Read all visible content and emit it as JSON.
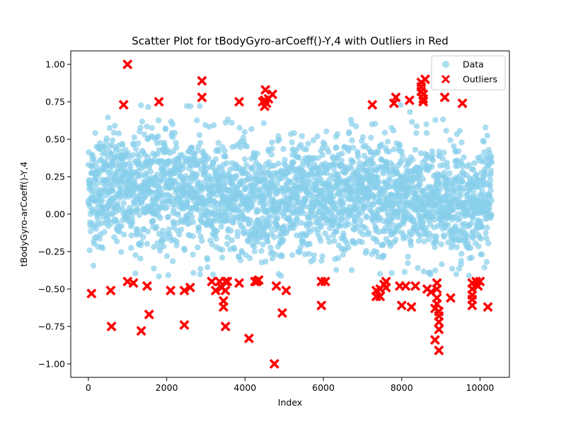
{
  "chart_data": {
    "type": "scatter",
    "title": "Scatter Plot for tBodyGyro-arCoeff()-Y,4 with Outliers in Red",
    "xlabel": "Index",
    "ylabel": "tBodyGyro-arCoeff()-Y,4",
    "xlim": [
      -450,
      10750
    ],
    "ylim": [
      -1.09,
      1.09
    ],
    "x_ticks": [
      0,
      2000,
      4000,
      6000,
      8000,
      10000
    ],
    "y_ticks": [
      -1.0,
      -0.75,
      -0.5,
      -0.25,
      0.0,
      0.25,
      0.5,
      0.75,
      1.0
    ],
    "x_tick_labels": [
      "0",
      "2000",
      "4000",
      "6000",
      "8000",
      "10000"
    ],
    "y_tick_labels": [
      "−1.00",
      "−0.75",
      "−0.50",
      "−0.25",
      "0.00",
      "0.25",
      "0.50",
      "0.75",
      "1.00"
    ],
    "legend_position": "top-right",
    "colors": {
      "data": "#87CEEB",
      "outliers": "#FF0000"
    },
    "series": [
      {
        "name": "Data",
        "marker": "circle",
        "n_points": 10299,
        "x_range": [
          0,
          10299
        ],
        "y_band": [
          -0.42,
          0.73
        ]
      },
      {
        "name": "Outliers",
        "marker": "x",
        "points": [
          [
            80,
            -0.53
          ],
          [
            570,
            -0.51
          ],
          [
            590,
            -0.75
          ],
          [
            900,
            0.73
          ],
          [
            1000,
            1.0
          ],
          [
            1000,
            -0.45
          ],
          [
            1150,
            -0.46
          ],
          [
            1350,
            -0.78
          ],
          [
            1500,
            -0.48
          ],
          [
            1550,
            -0.67
          ],
          [
            1800,
            0.75
          ],
          [
            2100,
            -0.51
          ],
          [
            2450,
            -0.74
          ],
          [
            2450,
            -0.51
          ],
          [
            2600,
            -0.49
          ],
          [
            2900,
            0.89
          ],
          [
            2900,
            0.78
          ],
          [
            3150,
            -0.45
          ],
          [
            3250,
            -0.51
          ],
          [
            3350,
            -0.45
          ],
          [
            3400,
            -0.49
          ],
          [
            3450,
            -0.58
          ],
          [
            3450,
            -0.62
          ],
          [
            3500,
            -0.45
          ],
          [
            3500,
            -0.51
          ],
          [
            3500,
            -0.75
          ],
          [
            3550,
            -0.45
          ],
          [
            3850,
            0.75
          ],
          [
            3850,
            -0.46
          ],
          [
            4100,
            -0.83
          ],
          [
            4250,
            -0.45
          ],
          [
            4300,
            -0.45
          ],
          [
            4350,
            -0.44
          ],
          [
            4450,
            0.75
          ],
          [
            4500,
            0.72
          ],
          [
            4500,
            0.76
          ],
          [
            4520,
            0.83
          ],
          [
            4550,
            0.74
          ],
          [
            4600,
            0.77
          ],
          [
            4700,
            0.8
          ],
          [
            4750,
            -1.0
          ],
          [
            4800,
            -0.48
          ],
          [
            4950,
            -0.66
          ],
          [
            5050,
            -0.51
          ],
          [
            5950,
            -0.61
          ],
          [
            5950,
            -0.45
          ],
          [
            6050,
            -0.45
          ],
          [
            7250,
            0.73
          ],
          [
            7350,
            -0.51
          ],
          [
            7350,
            -0.55
          ],
          [
            7450,
            -0.5
          ],
          [
            7450,
            -0.55
          ],
          [
            7550,
            -0.47
          ],
          [
            7600,
            -0.45
          ],
          [
            7600,
            -0.49
          ],
          [
            7800,
            0.74
          ],
          [
            7850,
            0.78
          ],
          [
            7950,
            -0.48
          ],
          [
            8000,
            -0.61
          ],
          [
            8100,
            -0.48
          ],
          [
            8200,
            0.76
          ],
          [
            8250,
            -0.62
          ],
          [
            8350,
            -0.48
          ],
          [
            8500,
            0.85
          ],
          [
            8500,
            0.88
          ],
          [
            8500,
            0.82
          ],
          [
            8550,
            0.8
          ],
          [
            8550,
            0.75
          ],
          [
            8550,
            0.77
          ],
          [
            8600,
            0.9
          ],
          [
            8650,
            -0.5
          ],
          [
            8750,
            -0.52
          ],
          [
            8850,
            -0.63
          ],
          [
            8850,
            -0.84
          ],
          [
            8900,
            -0.46
          ],
          [
            8900,
            -0.5
          ],
          [
            8900,
            -0.56
          ],
          [
            8900,
            -0.6
          ],
          [
            8950,
            -0.65
          ],
          [
            8950,
            -0.68
          ],
          [
            8950,
            -0.72
          ],
          [
            8950,
            -0.77
          ],
          [
            8950,
            -0.91
          ],
          [
            9100,
            0.78
          ],
          [
            9250,
            -0.56
          ],
          [
            9550,
            0.74
          ],
          [
            9800,
            -0.46
          ],
          [
            9800,
            -0.5
          ],
          [
            9800,
            -0.54
          ],
          [
            9800,
            -0.57
          ],
          [
            9800,
            -0.61
          ],
          [
            9900,
            -0.45
          ],
          [
            9950,
            -0.48
          ],
          [
            10000,
            -0.45
          ],
          [
            10200,
            -0.62
          ]
        ]
      }
    ]
  }
}
